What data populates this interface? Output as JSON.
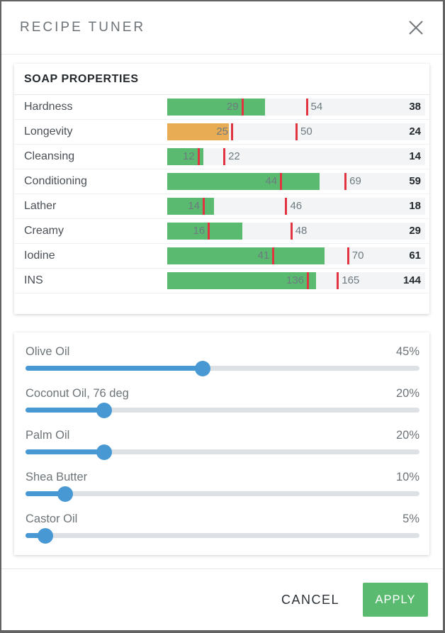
{
  "dialog": {
    "title": "RECIPE TUNER",
    "close_icon": "close-x"
  },
  "properties_panel": {
    "heading": "SOAP PROPERTIES",
    "rows": [
      {
        "label": "Hardness",
        "value": 38,
        "range_min": 29,
        "range_max": 54,
        "scale_max": 100,
        "status": "ok"
      },
      {
        "label": "Longevity",
        "value": 24,
        "range_min": 25,
        "range_max": 50,
        "scale_max": 100,
        "status": "warn"
      },
      {
        "label": "Cleansing",
        "value": 14,
        "range_min": 12,
        "range_max": 22,
        "scale_max": 100,
        "status": "ok"
      },
      {
        "label": "Conditioning",
        "value": 59,
        "range_min": 44,
        "range_max": 69,
        "scale_max": 100,
        "status": "ok"
      },
      {
        "label": "Lather",
        "value": 18,
        "range_min": 14,
        "range_max": 46,
        "scale_max": 100,
        "status": "ok"
      },
      {
        "label": "Creamy",
        "value": 29,
        "range_min": 16,
        "range_max": 48,
        "scale_max": 100,
        "status": "ok"
      },
      {
        "label": "Iodine",
        "value": 61,
        "range_min": 41,
        "range_max": 70,
        "scale_max": 100,
        "status": "ok"
      },
      {
        "label": "INS",
        "value": 144,
        "range_min": 136,
        "range_max": 165,
        "scale_max": 250,
        "status": "ok"
      }
    ]
  },
  "sliders": [
    {
      "label": "Olive Oil",
      "percent": 45,
      "display": "45%"
    },
    {
      "label": "Coconut Oil, 76 deg",
      "percent": 20,
      "display": "20%"
    },
    {
      "label": "Palm Oil",
      "percent": 20,
      "display": "20%"
    },
    {
      "label": "Shea Butter",
      "percent": 10,
      "display": "10%"
    },
    {
      "label": "Castor Oil",
      "percent": 5,
      "display": "5%"
    }
  ],
  "footer": {
    "cancel_label": "CANCEL",
    "apply_label": "APPLY"
  },
  "colors": {
    "bar_ok": "#5abb70",
    "bar_warn": "#e8ac54",
    "tick_red": "#e23440",
    "slider_blue": "#4798d3",
    "apply_green": "#5abb70"
  }
}
